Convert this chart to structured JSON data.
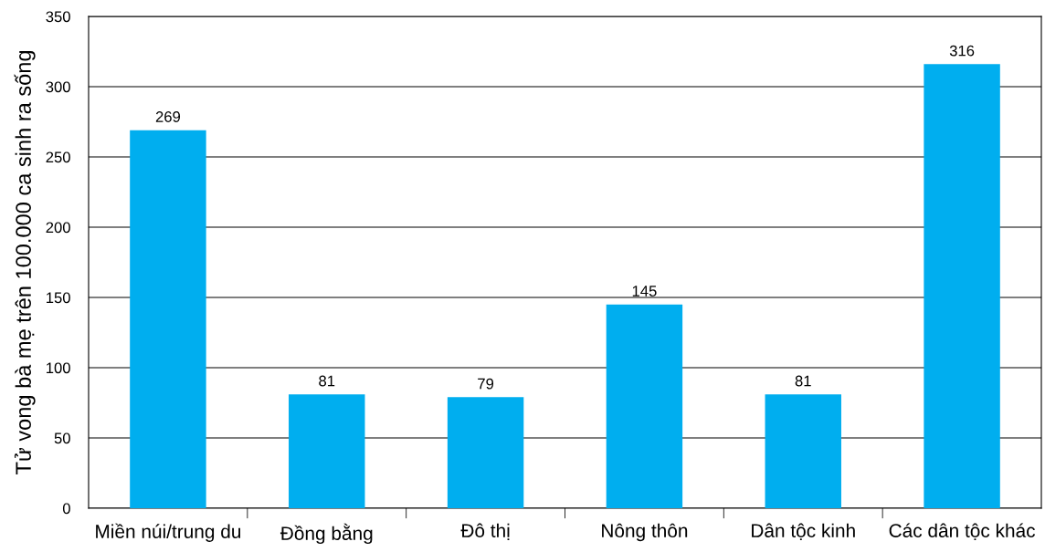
{
  "chart_data": {
    "type": "bar",
    "ylabel": "Tử vong bà mẹ trên 100.000 ca sinh ra sống",
    "categories": [
      "Miền núi/trung du",
      "Đồng bằng",
      "Đô thị",
      "Nông thôn",
      "Dân tộc kinh",
      "Các dân tộc khác"
    ],
    "values": [
      269,
      81,
      79,
      145,
      81,
      316
    ],
    "color": "#00aeef",
    "ylim": [
      0,
      350
    ],
    "yticks": [
      0,
      50,
      100,
      150,
      200,
      250,
      300,
      350
    ],
    "grid": "y",
    "data_labels": true
  }
}
